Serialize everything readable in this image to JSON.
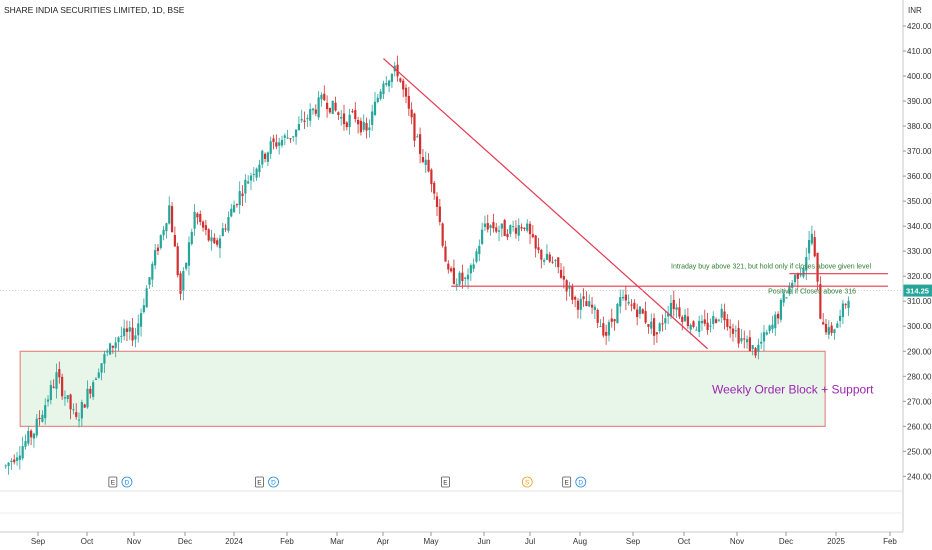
{
  "header": {
    "title": "SHARE INDIA SECURITIES LIMITED, 1D, BSE",
    "currency": "INR"
  },
  "colors": {
    "up": "#26a69a",
    "down": "#d32f2f",
    "trendline": "#e53950",
    "zone_fill": "#e8f5e9",
    "zone_border": "#e57373",
    "zone_text": "#9c27b0",
    "annotation": "#2f7d32",
    "price_tag": "#26a69a",
    "dividend": "#1e88e5",
    "split": "#f0a020"
  },
  "chart_data": {
    "type": "candlestick",
    "title": "SHARE INDIA SECURITIES LIMITED, 1D, BSE",
    "y_range": [
      232,
      425
    ],
    "y_ticks": [
      "420.00",
      "410.00",
      "400.00",
      "390.00",
      "380.00",
      "370.00",
      "360.00",
      "350.00",
      "340.00",
      "330.00",
      "320.00",
      "310.00",
      "300.00",
      "290.00",
      "280.00",
      "270.00",
      "260.00",
      "250.00",
      "240.00"
    ],
    "x_ticks": [
      "Sep",
      "Oct",
      "Nov",
      "Dec",
      "2024",
      "Feb",
      "Mar",
      "Apr",
      "May",
      "Jun",
      "Jul",
      "Aug",
      "Sep",
      "Oct",
      "Nov",
      "Dec",
      "2025",
      "Feb"
    ],
    "last_price": "314.25",
    "price_path": [
      [
        0,
        244
      ],
      [
        10,
        258
      ],
      [
        18,
        280
      ],
      [
        25,
        262
      ],
      [
        33,
        284
      ],
      [
        40,
        296
      ],
      [
        46,
        297
      ],
      [
        52,
        324
      ],
      [
        58,
        348
      ],
      [
        62,
        313
      ],
      [
        67,
        345
      ],
      [
        74,
        331
      ],
      [
        82,
        351
      ],
      [
        88,
        363
      ],
      [
        94,
        372
      ],
      [
        102,
        377
      ],
      [
        108,
        385
      ],
      [
        113,
        391
      ],
      [
        120,
        382
      ],
      [
        124,
        384
      ],
      [
        128,
        377
      ],
      [
        134,
        399
      ],
      [
        139,
        402
      ],
      [
        146,
        373
      ],
      [
        152,
        356
      ],
      [
        157,
        320
      ],
      [
        164,
        318
      ],
      [
        170,
        341
      ],
      [
        177,
        338
      ],
      [
        184,
        341
      ],
      [
        188,
        330
      ],
      [
        196,
        323
      ],
      [
        202,
        310
      ],
      [
        208,
        307
      ],
      [
        213,
        297
      ],
      [
        218,
        310
      ],
      [
        225,
        306
      ],
      [
        231,
        297
      ],
      [
        236,
        310
      ],
      [
        242,
        302
      ],
      [
        248,
        299
      ],
      [
        254,
        306
      ],
      [
        260,
        296
      ],
      [
        266,
        290
      ],
      [
        272,
        300
      ],
      [
        278,
        316
      ],
      [
        283,
        325
      ],
      [
        286,
        337
      ],
      [
        289,
        305
      ],
      [
        292,
        297
      ],
      [
        296,
        303
      ],
      [
        299,
        313
      ]
    ],
    "lines": [
      {
        "label": "descending trendline",
        "from": [
          134,
          407
        ],
        "to": [
          249,
          291
        ]
      },
      {
        "label": "resistance",
        "from": [
          158,
          316
        ],
        "to": [
          313,
          316
        ]
      },
      {
        "label": "intraday level",
        "from": [
          278,
          321
        ],
        "to": [
          313,
          321
        ]
      }
    ],
    "zone": {
      "label": "Weekly Order Block + Support",
      "x0": 7,
      "x1": 313,
      "y_top": 290,
      "y_bottom": 260
    },
    "annotations": [
      {
        "text": "Intraday buy above 321, but hold only if closes above given level",
        "x": 278,
        "y": 323
      },
      {
        "text": "Positive if Closes above 316",
        "x": 313,
        "y": 313
      }
    ],
    "events": [
      {
        "type": "E",
        "x": 38
      },
      {
        "type": "D",
        "x": 43
      },
      {
        "type": "E",
        "x": 90
      },
      {
        "type": "D",
        "x": 95
      },
      {
        "type": "E",
        "x": 156
      },
      {
        "type": "S",
        "x": 185
      },
      {
        "type": "E",
        "x": 199
      },
      {
        "type": "D",
        "x": 204
      }
    ]
  }
}
